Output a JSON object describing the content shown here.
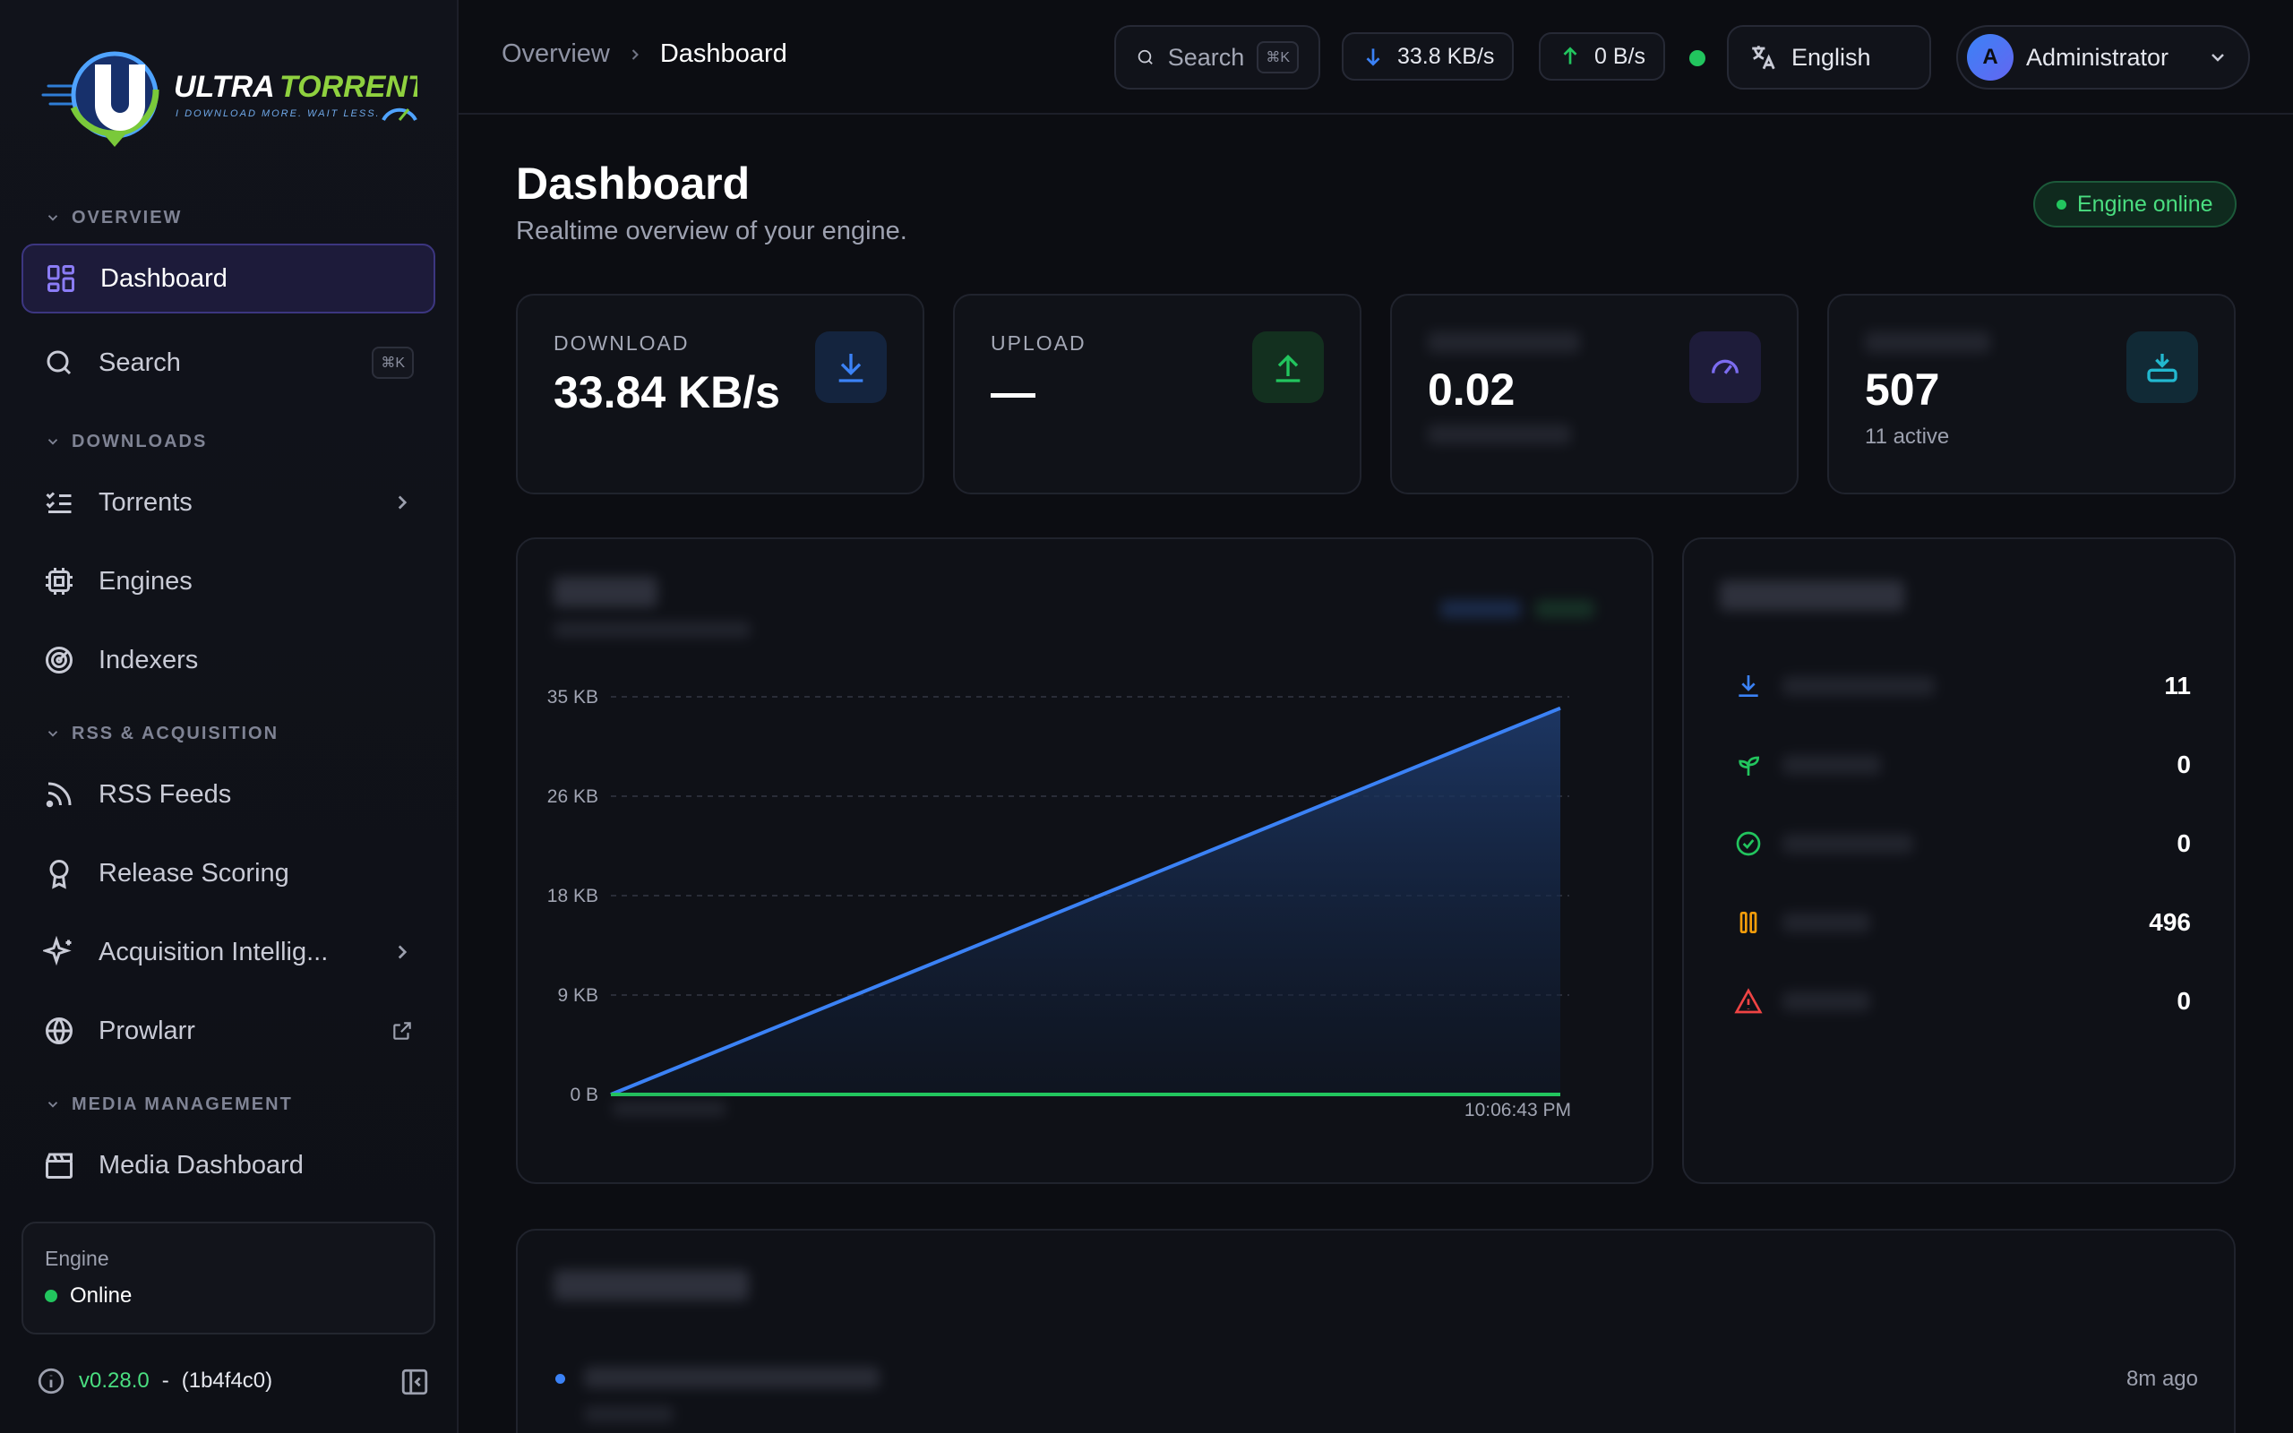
{
  "brand": {
    "name_a": "ULTRA",
    "name_b": "TORRENT",
    "tagline": "I DOWNLOAD MORE. WAIT LESS."
  },
  "sidebar": {
    "sections": {
      "overview": "OVERVIEW",
      "downloads": "DOWNLOADS",
      "rss": "RSS & ACQUISITION",
      "media": "MEDIA MANAGEMENT"
    },
    "items": {
      "dashboard": "Dashboard",
      "search": "Search",
      "search_kbd": "⌘K",
      "torrents": "Torrents",
      "engines": "Engines",
      "indexers": "Indexers",
      "rss_feeds": "RSS Feeds",
      "release_scoring": "Release Scoring",
      "acquisition": "Acquisition Intellig...",
      "prowlarr": "Prowlarr",
      "media_dashboard": "Media Dashboard"
    },
    "engine_card": {
      "label": "Engine",
      "status": "Online"
    },
    "version": {
      "ver": "v0.28.0",
      "sep": "-",
      "hash": "(1b4f4c0)"
    }
  },
  "topbar": {
    "breadcrumb": [
      "Overview",
      "Dashboard"
    ],
    "search_label": "Search",
    "search_kbd": "⌘K",
    "down_speed": "33.8 KB/s",
    "up_speed": "0 B/s",
    "language": "English",
    "avatar_letter": "A",
    "user": "Administrator"
  },
  "page": {
    "title": "Dashboard",
    "subtitle": "Realtime overview of your engine.",
    "engine_status": "Engine online"
  },
  "stats": {
    "download": {
      "label": "DOWNLOAD",
      "value": "33.84 KB/s"
    },
    "upload": {
      "label": "UPLOAD",
      "value": "—"
    },
    "ratio": {
      "value": "0.02"
    },
    "torrents": {
      "value": "507",
      "sub": "11 active"
    }
  },
  "torrent_status": [
    {
      "icon": "download-icon",
      "value": "11",
      "color": "#3b82f6"
    },
    {
      "icon": "seedling-icon",
      "value": "0",
      "color": "#22c55e"
    },
    {
      "icon": "check-circle-icon",
      "value": "0",
      "color": "#22c55e"
    },
    {
      "icon": "pause-icon",
      "value": "496",
      "color": "#f59e0b"
    },
    {
      "icon": "warning-icon",
      "value": "0",
      "color": "#ef4444"
    }
  ],
  "activity": {
    "time": "8m ago"
  },
  "colors": {
    "accent": "#6366f1",
    "download": "#3b82f6",
    "upload": "#22c55e",
    "online": "#22c55e"
  },
  "chart_data": {
    "type": "area",
    "y_tick_labels": [
      "0 B",
      "9 KB",
      "18 KB",
      "26 KB",
      "35 KB"
    ],
    "ylim": [
      0,
      35
    ],
    "x_last_label": "10:06:43 PM",
    "series": [
      {
        "x": [
          0,
          1
        ],
        "values": [
          0,
          34
        ]
      },
      {
        "x": [
          0,
          1
        ],
        "values": [
          0,
          0
        ]
      }
    ]
  }
}
